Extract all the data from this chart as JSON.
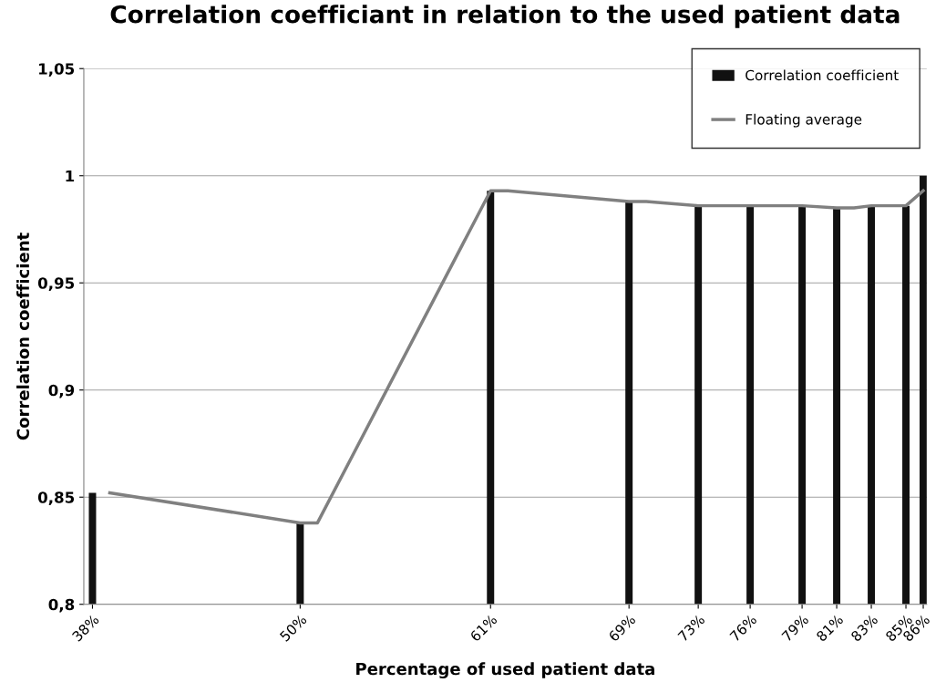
{
  "chart_data": {
    "type": "bar",
    "title": "Correlation coefficiant in relation to the used patient data",
    "xlabel": "Percentage of used patient data",
    "ylabel": "Correlation coefficient",
    "x": [
      38,
      50,
      61,
      69,
      73,
      76,
      79,
      81,
      83,
      85,
      86
    ],
    "series": [
      {
        "name": "Correlation coefficient",
        "color": "#111111",
        "values": [
          0.852,
          0.838,
          0.993,
          0.988,
          0.986,
          0.986,
          0.986,
          0.985,
          0.986,
          0.986,
          1.0
        ]
      },
      {
        "name": "Floating average",
        "type": "line",
        "color": "#808080",
        "x": [
          39,
          50,
          51,
          61,
          62,
          69,
          70,
          73,
          76,
          79,
          81,
          82,
          83,
          84,
          85,
          86
        ],
        "values": [
          0.852,
          0.838,
          0.838,
          0.993,
          0.993,
          0.988,
          0.988,
          0.986,
          0.986,
          0.986,
          0.985,
          0.985,
          0.986,
          0.986,
          0.986,
          0.993
        ]
      }
    ],
    "xlim": [
      37.5,
      86.2
    ],
    "xticks": [
      {
        "value": 38,
        "label": "38%"
      },
      {
        "value": 50,
        "label": "50%"
      },
      {
        "value": 61,
        "label": "61%"
      },
      {
        "value": 69,
        "label": "69%"
      },
      {
        "value": 73,
        "label": "73%"
      },
      {
        "value": 76,
        "label": "76%"
      },
      {
        "value": 79,
        "label": "79%"
      },
      {
        "value": 81,
        "label": "81%"
      },
      {
        "value": 83,
        "label": "83%"
      },
      {
        "value": 85,
        "label": "85%"
      },
      {
        "value": 86,
        "label": "86%"
      }
    ],
    "ylim": [
      0.8,
      1.05
    ],
    "yticks": [
      {
        "value": 0.8,
        "label": "0,8"
      },
      {
        "value": 0.85,
        "label": "0,85"
      },
      {
        "value": 0.9,
        "label": "0,9"
      },
      {
        "value": 0.95,
        "label": "0,95"
      },
      {
        "value": 1,
        "label": "1"
      },
      {
        "value": 1.05,
        "label": "1,05"
      }
    ],
    "grid": "y",
    "legend": "top right",
    "marker": "none",
    "line_style": "solid"
  }
}
